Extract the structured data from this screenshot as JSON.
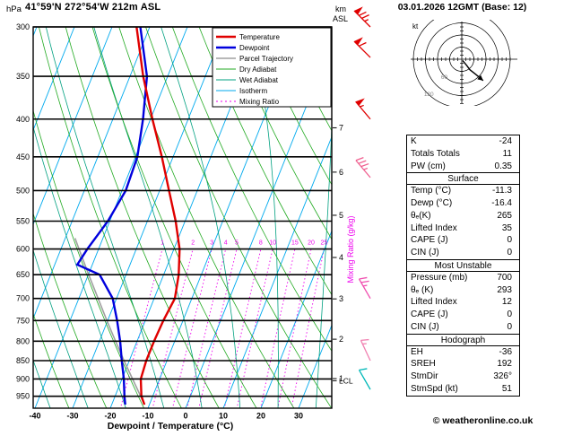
{
  "header": {
    "pressure_unit": "hPa",
    "station": "41°59'N 272°54'W 212m ASL",
    "datetime": "03.01.2026 12GMT (Base: 12)",
    "alt_unit_line1": "km",
    "alt_unit_line2": "ASL"
  },
  "axes": {
    "x_label": "Dewpoint / Temperature (°C)",
    "mixing_ratio_label": "Mixing Ratio (g/kg)",
    "lcl_label": "LCL"
  },
  "colors": {
    "temperature": "#e00000",
    "dewpoint": "#0000dd",
    "parcel": "#a0a0a0",
    "dry_adiabat": "#22aa22",
    "wet_adiabat": "#00a080",
    "isotherm": "#00aaee",
    "mixing_ratio": "#ee00ee",
    "grid": "#000000"
  },
  "legend": {
    "items": [
      {
        "label": "Temperature",
        "color_key": "temperature",
        "width": 2.4,
        "dash": ""
      },
      {
        "label": "Dewpoint",
        "color_key": "dewpoint",
        "width": 2.4,
        "dash": ""
      },
      {
        "label": "Parcel Trajectory",
        "color_key": "parcel",
        "width": 1.6,
        "dash": ""
      },
      {
        "label": "Dry Adiabat",
        "color_key": "dry_adiabat",
        "width": 1,
        "dash": ""
      },
      {
        "label": "Wet Adiabat",
        "color_key": "wet_adiabat",
        "width": 1,
        "dash": ""
      },
      {
        "label": "Isotherm",
        "color_key": "isotherm",
        "width": 1,
        "dash": ""
      },
      {
        "label": "Mixing Ratio",
        "color_key": "mixing_ratio",
        "width": 1,
        "dash": "2,3"
      }
    ]
  },
  "table": {
    "rows": [
      {
        "type": "kv",
        "label": "K",
        "value": "-24"
      },
      {
        "type": "kv",
        "label": "Totals Totals",
        "value": "11"
      },
      {
        "type": "kv",
        "label": "PW (cm)",
        "value": "0.35"
      },
      {
        "type": "header",
        "label": "Surface"
      },
      {
        "type": "kv",
        "label": "Temp (°C)",
        "value": "-11.3"
      },
      {
        "type": "kv",
        "label": "Dewp (°C)",
        "value": "-16.4"
      },
      {
        "type": "kv",
        "label": "θₑ(K)",
        "value": "265"
      },
      {
        "type": "kv",
        "label": "Lifted Index",
        "value": "35"
      },
      {
        "type": "kv",
        "label": "CAPE (J)",
        "value": "0"
      },
      {
        "type": "kv",
        "label": "CIN (J)",
        "value": "0"
      },
      {
        "type": "header",
        "label": "Most Unstable"
      },
      {
        "type": "kv",
        "label": "Pressure (mb)",
        "value": "700"
      },
      {
        "type": "kv",
        "label": "θₑ (K)",
        "value": "293"
      },
      {
        "type": "kv",
        "label": "Lifted Index",
        "value": "12"
      },
      {
        "type": "kv",
        "label": "CAPE (J)",
        "value": "0"
      },
      {
        "type": "kv",
        "label": "CIN (J)",
        "value": "0"
      },
      {
        "type": "header",
        "label": "Hodograph"
      },
      {
        "type": "kv",
        "label": "EH",
        "value": "-36"
      },
      {
        "type": "kv",
        "label": "SREH",
        "value": "192"
      },
      {
        "type": "kv",
        "label": "StmDir",
        "value": "326°"
      },
      {
        "type": "kv",
        "label": "StmSpd (kt)",
        "value": "51"
      }
    ]
  },
  "footer": {
    "credit": "© weatheronline.co.uk"
  },
  "chart_data": {
    "type": "skewt-log-p sounding",
    "pressure_axis_hpa": [
      300,
      350,
      400,
      450,
      500,
      550,
      600,
      650,
      700,
      750,
      800,
      850,
      900,
      950
    ],
    "temp_axis_c": [
      -40,
      -30,
      -20,
      -10,
      0,
      10,
      20,
      30
    ],
    "km_asl_ticks": [
      {
        "km": 1,
        "hpa": 899
      },
      {
        "km": 2,
        "hpa": 795
      },
      {
        "km": 3,
        "hpa": 701
      },
      {
        "km": 4,
        "hpa": 616
      },
      {
        "km": 5,
        "hpa": 540
      },
      {
        "km": 6,
        "hpa": 472
      },
      {
        "km": 7,
        "hpa": 411
      }
    ],
    "mixing_ratio_lines_gkg": [
      1,
      2,
      3,
      4,
      5,
      8,
      10,
      15,
      20,
      25
    ],
    "lcl_pressure_hpa": 905,
    "temperature_profile": [
      [
        975,
        -11.3
      ],
      [
        950,
        -13
      ],
      [
        900,
        -15
      ],
      [
        850,
        -15.5
      ],
      [
        800,
        -15.5
      ],
      [
        750,
        -15.2
      ],
      [
        700,
        -14.5
      ],
      [
        650,
        -16
      ],
      [
        600,
        -18.5
      ],
      [
        550,
        -22.5
      ],
      [
        500,
        -27.5
      ],
      [
        450,
        -33
      ],
      [
        400,
        -39.5
      ],
      [
        350,
        -46.5
      ],
      [
        300,
        -53.5
      ]
    ],
    "dewpoint_profile": [
      [
        975,
        -16.4
      ],
      [
        950,
        -17.5
      ],
      [
        900,
        -19.5
      ],
      [
        850,
        -22
      ],
      [
        800,
        -24.5
      ],
      [
        750,
        -27.5
      ],
      [
        700,
        -31
      ],
      [
        650,
        -37
      ],
      [
        630,
        -44
      ],
      [
        600,
        -43
      ],
      [
        550,
        -40.5
      ],
      [
        500,
        -39
      ],
      [
        450,
        -39.5
      ],
      [
        400,
        -42
      ],
      [
        350,
        -45.5
      ],
      [
        300,
        -52.5
      ]
    ],
    "parcel_profile": [
      [
        975,
        -11.3
      ],
      [
        950,
        -13.2
      ],
      [
        900,
        -17.2
      ],
      [
        850,
        -21.4
      ],
      [
        800,
        -25.7
      ],
      [
        750,
        -30.2
      ],
      [
        700,
        -34.9
      ],
      [
        650,
        -39.9
      ],
      [
        600,
        -45.2
      ],
      [
        580,
        -47.4
      ]
    ],
    "wind_barbs": [
      {
        "hpa": 300,
        "speed_kt": 75,
        "dir_deg": 315,
        "color": "#e00000"
      },
      {
        "hpa": 330,
        "speed_kt": 60,
        "dir_deg": 315,
        "color": "#e00000"
      },
      {
        "hpa": 400,
        "speed_kt": 55,
        "dir_deg": 320,
        "color": "#e00000"
      },
      {
        "hpa": 480,
        "speed_kt": 35,
        "dir_deg": 320,
        "color": "#f06090"
      },
      {
        "hpa": 700,
        "speed_kt": 25,
        "dir_deg": 330,
        "color": "#f050b0"
      },
      {
        "hpa": 850,
        "speed_kt": 15,
        "dir_deg": 335,
        "color": "#f080b0"
      },
      {
        "hpa": 930,
        "speed_kt": 10,
        "dir_deg": 330,
        "color": "#00b8b8"
      }
    ],
    "hodograph": {
      "unit_label": "kt",
      "rings_kt": [
        30,
        60,
        90,
        120
      ],
      "ring_label_kts": [
        60,
        120
      ],
      "trace_uv_kt": [
        [
          2,
          -3
        ],
        [
          6,
          -8
        ],
        [
          12,
          -15
        ],
        [
          20,
          -26
        ],
        [
          35,
          -38
        ],
        [
          53,
          -53
        ]
      ]
    }
  }
}
